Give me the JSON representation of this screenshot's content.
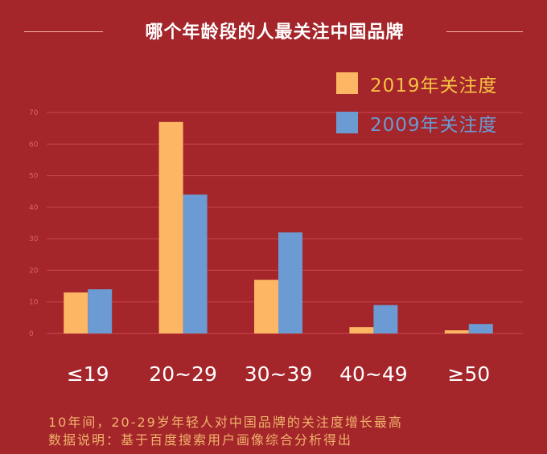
{
  "colors": {
    "background": "#a4252a",
    "series_2019": "#fdb764",
    "series_2009": "#6b9bd2",
    "legend_2019_text": "#f6c344",
    "legend_2009_text": "#6b9bd2",
    "grid": "#c9474c",
    "axis_text": "#d4676a",
    "category_text": "#ffffff",
    "note_text": "#f1b36c"
  },
  "chart_data": {
    "type": "bar",
    "title": "哪个年龄段的人最关注中国品牌",
    "categories": [
      "≤19",
      "20~29",
      "30~39",
      "40~49",
      "≥50"
    ],
    "series": [
      {
        "name": "2019年关注度",
        "values": [
          13,
          67,
          17,
          2,
          1
        ]
      },
      {
        "name": "2009年关注度",
        "values": [
          14,
          44,
          32,
          9,
          3
        ]
      }
    ],
    "y_ticks": [
      "0",
      "10",
      "20",
      "30",
      "40",
      "50",
      "60",
      "70"
    ],
    "ylim": [
      0,
      70
    ],
    "grid": true,
    "legend_position": "top-right",
    "xlabel": "",
    "ylabel": ""
  },
  "notes": {
    "line1": "10年间，20-29岁年轻人对中国品牌的关注度增长最高",
    "line2": "数据说明：基于百度搜索用户画像综合分析得出"
  }
}
